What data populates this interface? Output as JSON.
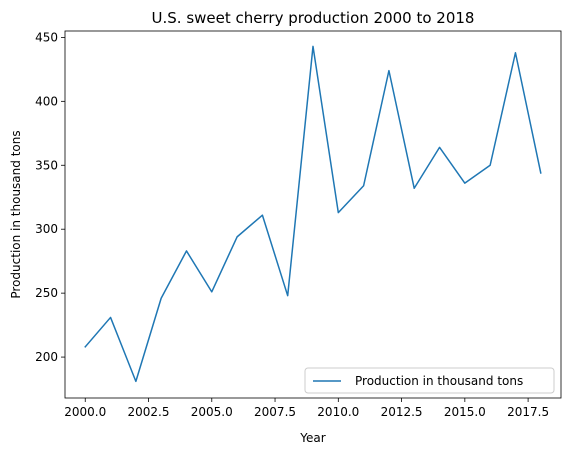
{
  "chart_data": {
    "type": "line",
    "title": "U.S. sweet cherry production 2000 to 2018",
    "xlabel": "Year",
    "ylabel": "Production in thousand tons",
    "xlim": [
      1999.2,
      2018.8
    ],
    "ylim": [
      168,
      455
    ],
    "x_ticks": [
      2000.0,
      2002.5,
      2005.0,
      2007.5,
      2010.0,
      2012.5,
      2015.0,
      2017.5
    ],
    "x_tick_labels": [
      "2000.0",
      "2002.5",
      "2005.0",
      "2007.5",
      "2010.0",
      "2012.5",
      "2015.0",
      "2017.5"
    ],
    "y_ticks": [
      200,
      250,
      300,
      350,
      400,
      450
    ],
    "y_tick_labels": [
      "200",
      "250",
      "300",
      "350",
      "400",
      "450"
    ],
    "grid": false,
    "legend_position": "lower-right",
    "series": [
      {
        "name": "Production in thousand tons",
        "color": "#1f77b4",
        "x": [
          2000,
          2001,
          2002,
          2003,
          2004,
          2005,
          2006,
          2007,
          2008,
          2009,
          2010,
          2011,
          2012,
          2013,
          2014,
          2015,
          2016,
          2017,
          2018
        ],
        "y": [
          208,
          231,
          181,
          246,
          283,
          251,
          294,
          311,
          248,
          443,
          313,
          334,
          424,
          332,
          364,
          336,
          350,
          438,
          344
        ]
      }
    ]
  }
}
